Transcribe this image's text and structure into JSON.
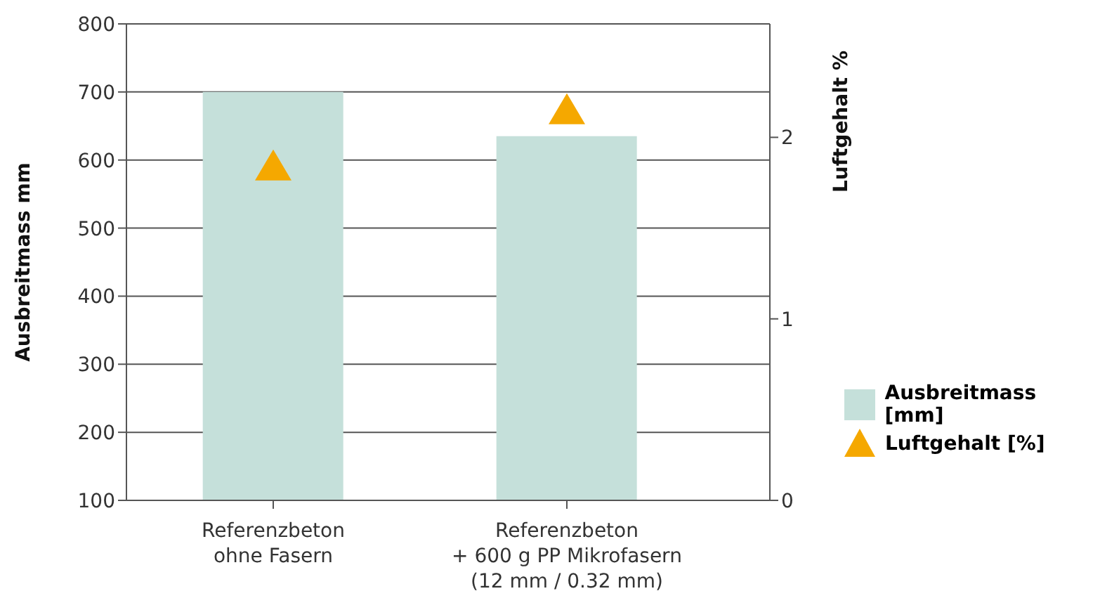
{
  "chart_data": {
    "type": "bar",
    "categories": [
      "Referenzbeton\nohne Fasern",
      "Referenzbeton\n+ 600 g PP Mikrofasern\n(12 mm / 0.32 mm)"
    ],
    "series": [
      {
        "name": "Ausbreitmass [mm]",
        "color": "#c5e0da",
        "values": [
          700,
          635
        ]
      },
      {
        "name": "Luftgehalt [%]",
        "type": "scatter",
        "axis": "y2",
        "marker": "triangle",
        "color": "#f5a800",
        "values": [
          1.84,
          2.15
        ]
      }
    ],
    "ylabel": "Ausbreitmass mm",
    "y2label": "Luftgehalt %",
    "ylim": [
      100,
      800
    ],
    "yticks": [
      100,
      200,
      300,
      400,
      500,
      600,
      700,
      800
    ],
    "y2lim": [
      0,
      2.625
    ],
    "y2ticks": [
      0,
      1,
      2
    ],
    "grid": "y",
    "legend": "right"
  }
}
